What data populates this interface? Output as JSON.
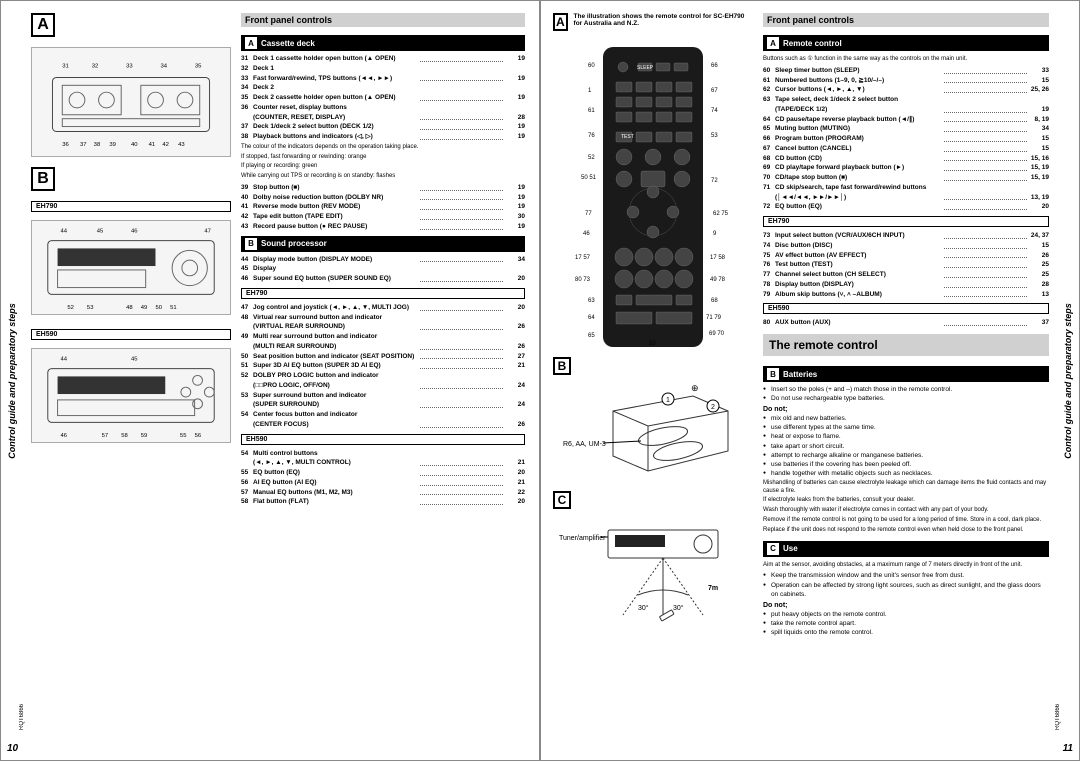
{
  "meta": {
    "doc_code": "RQT6866",
    "page_left_num": "10",
    "page_right_num": "11",
    "side_label": "Control guide and preparatory steps"
  },
  "left": {
    "letters": [
      "A",
      "B"
    ],
    "models": [
      "EH790",
      "EH590"
    ],
    "title_front": "Front panel controls",
    "cassette_deck": {
      "letter": "A",
      "label": "Cassette deck",
      "items": [
        {
          "n": "31",
          "t": "Deck 1 cassette holder open button (▲ OPEN)",
          "p": "19"
        },
        {
          "n": "32",
          "t": "Deck 1",
          "p": ""
        },
        {
          "n": "33",
          "t": "Fast forward/rewind, TPS buttons (◄◄, ►►)",
          "p": "19"
        },
        {
          "n": "34",
          "t": "Deck 2",
          "p": ""
        },
        {
          "n": "35",
          "t": "Deck 2 cassette holder open button (▲ OPEN)",
          "p": "19"
        },
        {
          "n": "36",
          "t": "Counter reset, display buttons",
          "p": ""
        },
        {
          "n": "",
          "t": "(COUNTER, RESET, DISPLAY)",
          "p": "28"
        },
        {
          "n": "37",
          "t": "Deck 1/deck 2 select button (DECK 1/2)",
          "p": "19"
        },
        {
          "n": "38",
          "t": "Playback buttons and indicators (◁, ▷)",
          "p": "19"
        }
      ],
      "notes": [
        "The colour of the indicators depends on the operation taking place.",
        "If stopped, fast forwarding or rewinding: orange",
        "If playing or recording: green",
        "While carrying out TPS or recording is on standby: flashes"
      ],
      "items2": [
        {
          "n": "39",
          "t": "Stop button (■)",
          "p": "19"
        },
        {
          "n": "40",
          "t": "Dolby noise reduction button (DOLBY NR)",
          "p": "19"
        },
        {
          "n": "41",
          "t": "Reverse mode button (REV MODE)",
          "p": "19"
        },
        {
          "n": "42",
          "t": "Tape edit button (TAPE EDIT)",
          "p": "30"
        },
        {
          "n": "43",
          "t": "Record pause button (● REC PAUSE)",
          "p": "19"
        }
      ]
    },
    "sound_processor": {
      "letter": "B",
      "label": "Sound processor",
      "items": [
        {
          "n": "44",
          "t": "Display mode button (DISPLAY MODE)",
          "p": "34"
        },
        {
          "n": "45",
          "t": "Display",
          "p": ""
        },
        {
          "n": "46",
          "t": "Super sound EQ button (SUPER SOUND EQ)",
          "p": "20"
        }
      ],
      "eh790_items": [
        {
          "n": "47",
          "t": "Jog control and joystick (◄, ►, ▲, ▼, MULTI JOG)",
          "p": "20"
        },
        {
          "n": "48",
          "t": "Virtual rear surround button and indicator",
          "p": ""
        },
        {
          "n": "",
          "t": "(VIRTUAL REAR SURROUND)",
          "p": "26"
        },
        {
          "n": "49",
          "t": "Multi rear surround button and indicator",
          "p": ""
        },
        {
          "n": "",
          "t": "(MULTI REAR SURROUND)",
          "p": "26"
        },
        {
          "n": "50",
          "t": "Seat position button and indicator (SEAT POSITION)",
          "p": "27"
        },
        {
          "n": "51",
          "t": "Super 3D AI EQ button (SUPER 3D AI EQ)",
          "p": "21"
        },
        {
          "n": "52",
          "t": "DOLBY PRO LOGIC button and indicator",
          "p": ""
        },
        {
          "n": "",
          "t": "(□□PRO LOGIC, OFF/ON)",
          "p": "24"
        },
        {
          "n": "53",
          "t": "Super surround button and indicator",
          "p": ""
        },
        {
          "n": "",
          "t": "(SUPER SURROUND)",
          "p": "24"
        },
        {
          "n": "54",
          "t": "Center focus button and indicator",
          "p": ""
        },
        {
          "n": "",
          "t": "(CENTER FOCUS)",
          "p": "26"
        }
      ],
      "eh590_items": [
        {
          "n": "54",
          "t": "Multi control buttons",
          "p": ""
        },
        {
          "n": "",
          "t": "(◄, ►, ▲, ▼, MULTI CONTROL)",
          "p": "21"
        },
        {
          "n": "55",
          "t": "EQ button (EQ)",
          "p": "20"
        },
        {
          "n": "56",
          "t": "AI EQ button (AI EQ)",
          "p": "21"
        },
        {
          "n": "57",
          "t": "Manual EQ buttons (M1, M2, M3)",
          "p": "22"
        },
        {
          "n": "58",
          "t": "Flat button (FLAT)",
          "p": "20"
        }
      ]
    }
  },
  "right": {
    "top_note": "The illustration shows the remote control for SC-EH790 for Australia and N.Z.",
    "title_front": "Front panel controls",
    "remote_title": "The remote control",
    "remote": {
      "letter": "A",
      "label": "Remote control",
      "intro": "Buttons such as ① function in the same way as the controls on the main unit.",
      "items": [
        {
          "n": "60",
          "t": "Sleep timer button (SLEEP)",
          "p": "33"
        },
        {
          "n": "61",
          "t": "Numbered buttons (1–9, 0, ≧10/–/–)",
          "p": "15"
        },
        {
          "n": "62",
          "t": "Cursor buttons (◄, ►, ▲, ▼)",
          "p": "25, 26"
        },
        {
          "n": "63",
          "t": "Tape select, deck 1/deck 2 select button",
          "p": ""
        },
        {
          "n": "",
          "t": "(TAPE/DECK 1/2)",
          "p": "19"
        },
        {
          "n": "64",
          "t": "CD pause/tape reverse playback button (◄/∥)",
          "p": "8, 19"
        },
        {
          "n": "65",
          "t": "Muting button (MUTING)",
          "p": "34"
        },
        {
          "n": "66",
          "t": "Program button (PROGRAM)",
          "p": "15"
        },
        {
          "n": "67",
          "t": "Cancel button (CANCEL)",
          "p": "15"
        },
        {
          "n": "68",
          "t": "CD button (CD)",
          "p": "15, 16"
        },
        {
          "n": "69",
          "t": "CD play/tape forward playback button (►)",
          "p": "15, 19"
        },
        {
          "n": "70",
          "t": "CD/tape stop button (■)",
          "p": "15, 19"
        },
        {
          "n": "71",
          "t": "CD skip/search, tape fast forward/rewind buttons",
          "p": ""
        },
        {
          "n": "",
          "t": "(│◄◄/◄◄, ►►/►►│)",
          "p": "13, 19"
        },
        {
          "n": "72",
          "t": "EQ button (EQ)",
          "p": "20"
        }
      ],
      "eh790_items": [
        {
          "n": "73",
          "t": "Input select button (VCR/AUX/6CH INPUT)",
          "p": "24, 37"
        },
        {
          "n": "74",
          "t": "Disc button (DISC)",
          "p": "15"
        },
        {
          "n": "75",
          "t": "AV effect button (AV EFFECT)",
          "p": "26"
        },
        {
          "n": "76",
          "t": "Test button (TEST)",
          "p": "25"
        },
        {
          "n": "77",
          "t": "Channel select button (CH SELECT)",
          "p": "25"
        },
        {
          "n": "78",
          "t": "Display button (DISPLAY)",
          "p": "28"
        },
        {
          "n": "79",
          "t": "Album skip buttons (˅, ˄ –ALBUM)",
          "p": "13"
        }
      ],
      "eh590_items": [
        {
          "n": "80",
          "t": "AUX button (AUX)",
          "p": "37"
        }
      ]
    },
    "batteries": {
      "letter": "B",
      "label": "Batteries",
      "spec": "R6, AA, UM-3",
      "lines": [
        "Insert so the poles (+ and –) match those in the remote control.",
        "Do not use rechargeable type batteries."
      ],
      "donot_label": "Do not;",
      "donot": [
        "mix old and new batteries.",
        "use different types at the same time.",
        "heat or expose to flame.",
        "take apart or short circuit.",
        "attempt to recharge alkaline or manganese batteries.",
        "use batteries if the covering has been peeled off.",
        "handle together with metallic objects such as necklaces."
      ],
      "tail": [
        "Mishandling of batteries can cause electrolyte leakage which can damage items the fluid contacts and may cause a fire.",
        "If electrolyte leaks from the batteries, consult your dealer.",
        "Wash thoroughly with water if electrolyte comes in contact with any part of your body.",
        "",
        "Remove if the remote control is not going to be used for a long period of time. Store in a cool, dark place.",
        "Replace if the unit does not respond to the remote control even when held close to the front panel."
      ]
    },
    "use": {
      "letter": "C",
      "label": "Use",
      "text": "Aim at the sensor, avoiding obstacles, at a maximum range of 7 meters directly in front of the unit.",
      "bullets": [
        "Keep the transmission window and the unit's sensor free from dust.",
        "Operation can be affected by strong light sources, such as direct sunlight, and the glass doors on cabinets."
      ],
      "donot_label": "Do not;",
      "donot": [
        "put heavy objects on the remote control.",
        "take the remote control apart.",
        "spill liquids onto the remote control."
      ],
      "fig": {
        "label": "Tuner/amplifier",
        "range": "7m",
        "angle_l": "30°",
        "angle_r": "30°"
      }
    }
  }
}
